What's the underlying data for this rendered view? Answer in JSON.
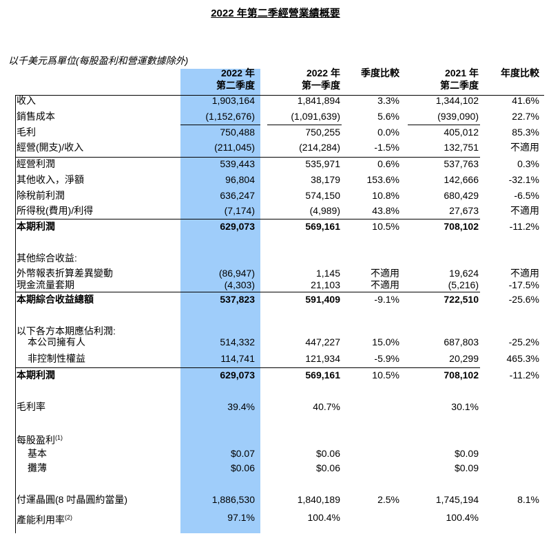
{
  "title": "2022 年第二季經營業績概要",
  "subtitle": "以千美元爲單位(每股盈利和營運數據除外)",
  "table": {
    "header": [
      [
        "2022 年",
        "第二季度"
      ],
      [
        "2022 年",
        "第一季度"
      ],
      [
        "季度比較"
      ],
      [
        "2021 年",
        "第二季度"
      ],
      [
        "年度比較"
      ]
    ],
    "rows": [
      {
        "label": "收入",
        "cells": [
          "1,903,164",
          "1,841,894",
          "3.3%",
          "1,344,102",
          "41.6%"
        ]
      },
      {
        "label": "銷售成本",
        "cells": [
          "(1,152,676)",
          "(1,091,639)",
          "5.6%",
          "(939,090)",
          "22.7%"
        ]
      },
      {
        "label": "毛利",
        "cells": [
          "750,488",
          "750,255",
          "0.0%",
          "405,012",
          "85.3%"
        ]
      },
      {
        "label": "經營(開支)/收入",
        "cells": [
          "(211,045)",
          "(214,284)",
          "-1.5%",
          "132,751",
          "不適用"
        ]
      },
      {
        "label": "經營利潤",
        "cells": [
          "539,443",
          "535,971",
          "0.6%",
          "537,763",
          "0.3%"
        ]
      },
      {
        "label": "其他收入，淨額",
        "cells": [
          "96,804",
          "38,179",
          "153.6%",
          "142,666",
          "-32.1%"
        ]
      },
      {
        "label": "除稅前利潤",
        "cells": [
          "636,247",
          "574,150",
          "10.8%",
          "680,429",
          "-6.5%"
        ]
      },
      {
        "label": "所得稅(費用)/利得",
        "cells": [
          "(7,174)",
          "(4,989)",
          "43.8%",
          "27,673",
          "不適用"
        ]
      },
      {
        "label": "本期利潤",
        "bold": true,
        "cells": [
          "629,073",
          "569,161",
          "10.5%",
          "708,102",
          "-11.2%"
        ]
      },
      {
        "label": "其他綜合收益:"
      },
      {
        "label": "外幣報表折算差異變動",
        "cells": [
          "(86,947)",
          "1,145",
          "不適用",
          "19,624",
          "不適用"
        ]
      },
      {
        "label": "現金流量套期",
        "cells": [
          "(4,303)",
          "21,103",
          "不適用",
          "(5,216)",
          "-17.5%"
        ]
      },
      {
        "label": "本期綜合收益總額",
        "bold": true,
        "cells": [
          "537,823",
          "591,409",
          "-9.1%",
          "722,510",
          "-25.6%"
        ]
      },
      {
        "label": "以下各方本期應佔利潤:"
      },
      {
        "label": "本公司擁有人",
        "indent": true,
        "cells": [
          "514,332",
          "447,227",
          "15.0%",
          "687,803",
          "-25.2%"
        ]
      },
      {
        "label": "非控制性權益",
        "indent": true,
        "cells": [
          "114,741",
          "121,934",
          "-5.9%",
          "20,299",
          "465.3%"
        ]
      },
      {
        "label": "本期利潤",
        "bold": true,
        "cells": [
          "629,073",
          "569,161",
          "10.5%",
          "708,102",
          "-11.2%"
        ]
      },
      {
        "label": "毛利率",
        "cells": [
          "39.4%",
          "40.7%",
          null,
          "30.1%",
          null
        ]
      },
      {
        "label": "每股盈利",
        "note": "(1)"
      },
      {
        "label": "基本",
        "indent": true,
        "cells": [
          "$0.07",
          "$0.06",
          null,
          "$0.09",
          null
        ]
      },
      {
        "label": "攤薄",
        "indent": true,
        "cells": [
          "$0.06",
          "$0.06",
          null,
          "$0.09",
          null
        ]
      },
      {
        "label": "付運晶圓(8 吋晶圓約當量)",
        "cells": [
          "1,886,530",
          "1,840,189",
          "2.5%",
          "1,745,194",
          "8.1%"
        ]
      },
      {
        "label": "產能利用率",
        "note": "(2)",
        "cells": [
          "97.1%",
          "100.4%",
          null,
          "100.4%",
          null
        ]
      }
    ]
  }
}
